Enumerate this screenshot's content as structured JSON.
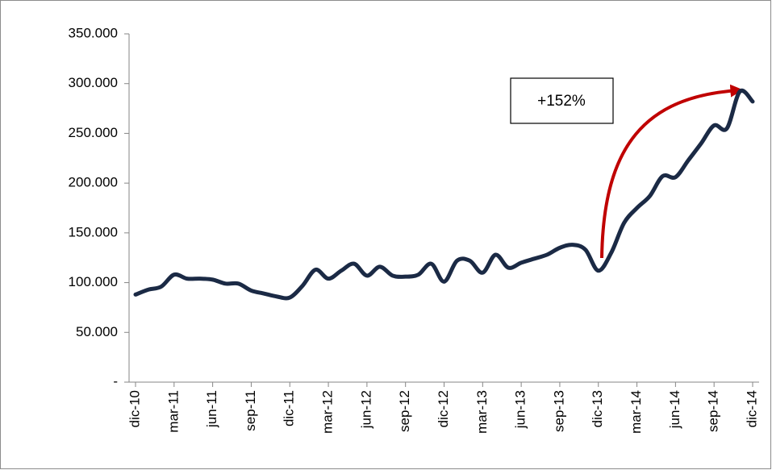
{
  "chart_data": {
    "type": "line",
    "categories": [
      "dic-10",
      null,
      null,
      "mar-11",
      null,
      null,
      "jun-11",
      null,
      null,
      "sep-11",
      null,
      null,
      "dic-11",
      null,
      null,
      "mar-12",
      null,
      null,
      "jun-12",
      null,
      null,
      "sep-12",
      null,
      null,
      "dic-12",
      null,
      null,
      "mar-13",
      null,
      null,
      "jun-13",
      null,
      null,
      "sep-13",
      null,
      null,
      "dic-13",
      null,
      null,
      "mar-14",
      null,
      null,
      "jun-14",
      null,
      null,
      "sep-14",
      null,
      null,
      "dic-14"
    ],
    "series": [
      {
        "color": "#1b2a45",
        "values": [
          88000,
          93000,
          96000,
          108000,
          104000,
          104000,
          103000,
          99000,
          99000,
          92000,
          89000,
          86000,
          85000,
          97000,
          113000,
          104000,
          112000,
          119000,
          107000,
          116000,
          107000,
          106000,
          108000,
          119000,
          101000,
          122000,
          122000,
          110000,
          128000,
          115000,
          120000,
          124000,
          128000,
          135000,
          138000,
          133000,
          112000,
          130000,
          160000,
          175000,
          187000,
          207000,
          206000,
          223000,
          240000,
          258000,
          255000,
          292000,
          282000
        ]
      }
    ],
    "ylim": [
      0,
      350000
    ],
    "yticks": [
      {
        "value": 0,
        "label": "-"
      },
      {
        "value": 50000,
        "label": "50.000"
      },
      {
        "value": 100000,
        "label": "100.000"
      },
      {
        "value": 150000,
        "label": "150.000"
      },
      {
        "value": 200000,
        "label": "200.000"
      },
      {
        "value": 250000,
        "label": "250.000"
      },
      {
        "value": 300000,
        "label": "300.000"
      },
      {
        "value": 350000,
        "label": "350.000"
      }
    ],
    "annotation": "+152%",
    "grid": false
  }
}
